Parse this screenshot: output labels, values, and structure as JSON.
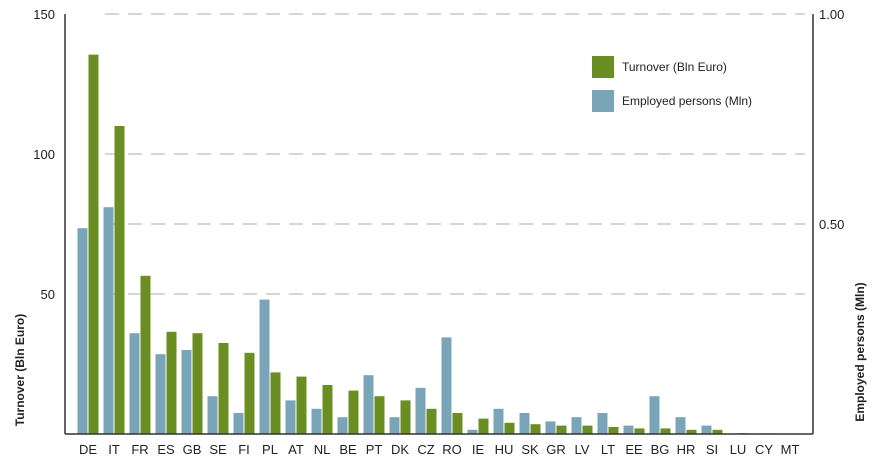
{
  "chart_data": {
    "type": "bar",
    "categories": [
      "DE",
      "IT",
      "FR",
      "ES",
      "GB",
      "SE",
      "FI",
      "PL",
      "AT",
      "NL",
      "BE",
      "PT",
      "DK",
      "CZ",
      "RO",
      "IE",
      "HU",
      "SK",
      "GR",
      "LV",
      "LT",
      "EE",
      "BG",
      "HR",
      "SI",
      "LU",
      "CY",
      "MT"
    ],
    "series": [
      {
        "name": "Employed persons (Mln)",
        "axis": "right",
        "color": "#7aa5b8",
        "values": [
          0.49,
          0.54,
          0.24,
          0.19,
          0.2,
          0.09,
          0.05,
          0.32,
          0.08,
          0.06,
          0.04,
          0.14,
          0.04,
          0.11,
          0.23,
          0.01,
          0.06,
          0.05,
          0.03,
          0.04,
          0.05,
          0.02,
          0.09,
          0.04,
          0.02,
          0.0,
          0.0,
          0.0
        ]
      },
      {
        "name": "Turnover (Bln Euro)",
        "axis": "left",
        "color": "#6b8e23",
        "values": [
          135.5,
          110,
          56.5,
          36.5,
          36,
          32.5,
          29,
          22,
          20.5,
          17.5,
          15.5,
          13.5,
          12,
          9,
          7.5,
          5.5,
          4,
          3.5,
          3,
          3,
          2.5,
          2,
          2,
          1.5,
          1.5,
          0.3,
          0.2,
          0.1
        ]
      }
    ],
    "ylabel": "Turnover (Bln Euro)",
    "ylabel_right": "Employed persons (Mln)",
    "ylim": [
      0,
      150
    ],
    "ylim_right": [
      0,
      1.0
    ],
    "yticks": [
      "50",
      "100",
      "150"
    ],
    "yticks_right": [
      "0.50",
      "1.00"
    ],
    "grid": true,
    "legend_position": "top-right"
  }
}
